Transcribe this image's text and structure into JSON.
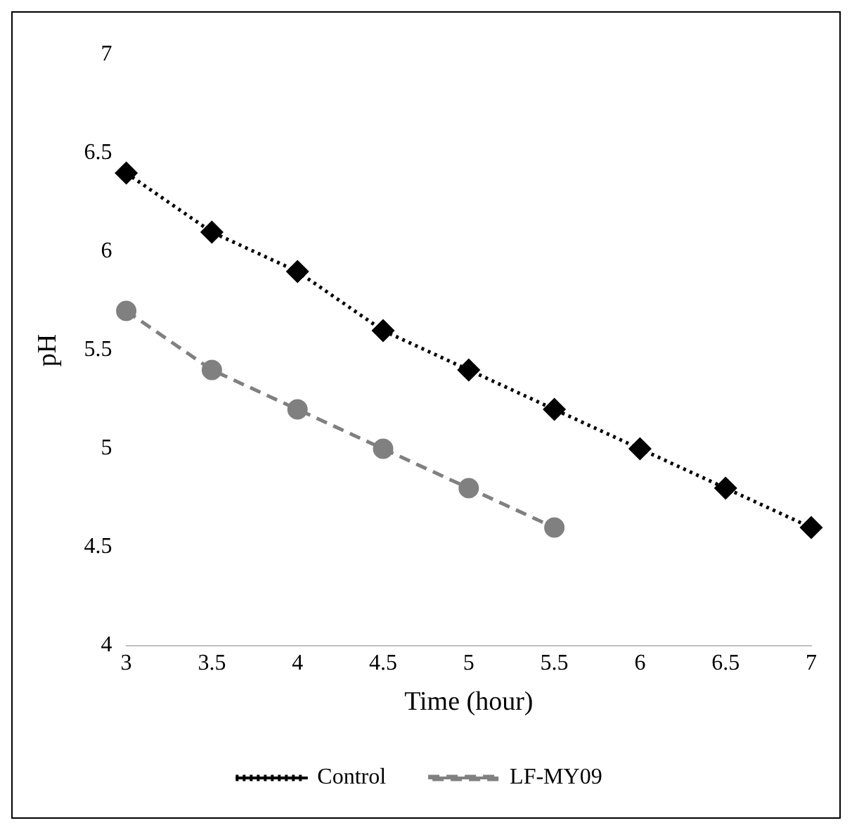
{
  "chart_data": {
    "type": "line",
    "xlabel": "Time (hour)",
    "ylabel": "pH",
    "xlim": [
      3,
      7
    ],
    "xticks": [
      3,
      3.5,
      4,
      4.5,
      5,
      5.5,
      6,
      6.5,
      7
    ],
    "ylim": [
      4,
      7
    ],
    "yticks": [
      4,
      4.5,
      5,
      5.5,
      6,
      6.5,
      7
    ],
    "grid": false,
    "legend": "bottom",
    "series": [
      {
        "name": "Control",
        "color": "#000000",
        "marker": "diamond",
        "line_style": "dotted",
        "x": [
          3,
          3.5,
          4,
          4.5,
          5,
          5.5,
          6,
          6.5,
          7
        ],
        "values": [
          6.4,
          6.1,
          5.9,
          5.6,
          5.4,
          5.2,
          5.0,
          4.8,
          4.6
        ]
      },
      {
        "name": "LF-MY09",
        "color": "#808080",
        "marker": "circle",
        "line_style": "dashed",
        "x": [
          3,
          3.5,
          4,
          4.5,
          5,
          5.5
        ],
        "values": [
          5.7,
          5.4,
          5.2,
          5.0,
          4.8,
          4.6
        ]
      }
    ]
  }
}
